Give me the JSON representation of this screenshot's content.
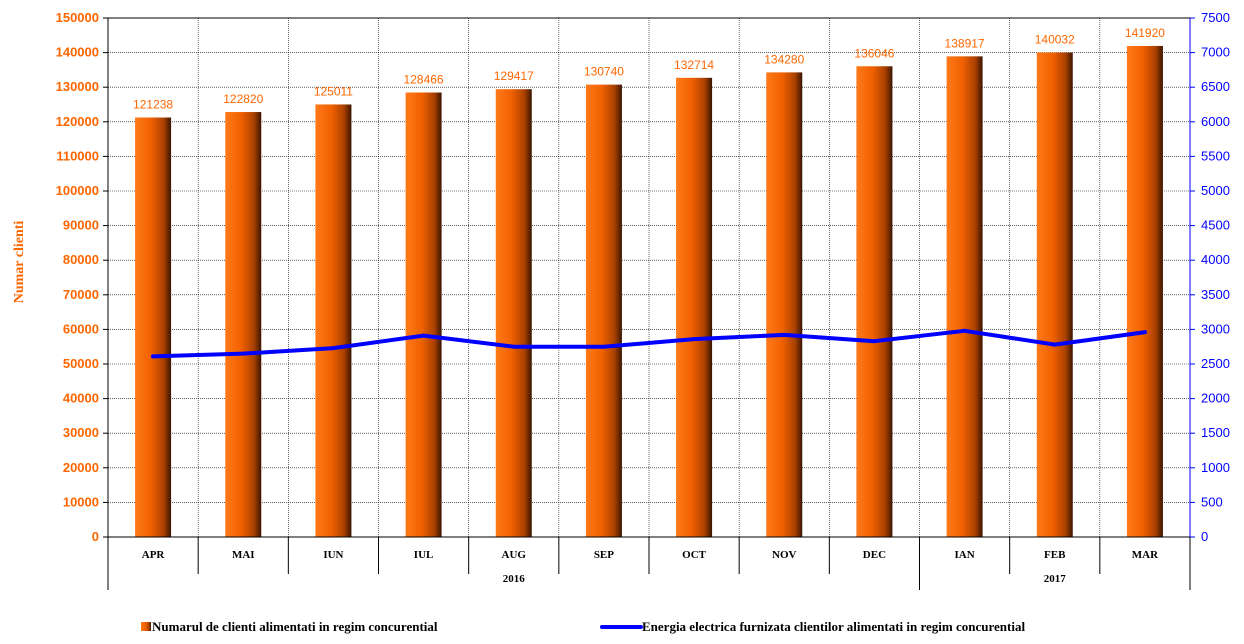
{
  "chart_data": {
    "type": "bar",
    "categories": [
      "APR",
      "MAI",
      "IUN",
      "IUL",
      "AUG",
      "SEP",
      "OCT",
      "NOV",
      "DEC",
      "IAN",
      "FEB",
      "MAR"
    ],
    "groups": [
      {
        "label": "2016",
        "span": 9
      },
      {
        "label": "2017",
        "span": 3
      }
    ],
    "series": [
      {
        "name": "Numarul de clienti alimentati in regim concurential",
        "type": "bar",
        "axis": "left",
        "color": "#ff6600",
        "values": [
          121238,
          122820,
          125011,
          128466,
          129417,
          130740,
          132714,
          134280,
          136046,
          138917,
          140032,
          141920
        ]
      },
      {
        "name": "Energia electrica furnizata clientilor alimentati in regim concurential",
        "type": "line",
        "axis": "right",
        "color": "#0000ff",
        "values": [
          2610,
          2650,
          2730,
          2910,
          2750,
          2750,
          2860,
          2920,
          2830,
          2980,
          2780,
          2960
        ]
      }
    ],
    "ylabel": "Numar clienti",
    "ylim": [
      0,
      150000
    ],
    "y_step": 10000,
    "y2lim": [
      0,
      7500
    ],
    "y2_step": 500,
    "grid": true,
    "legend_position": "bottom"
  }
}
